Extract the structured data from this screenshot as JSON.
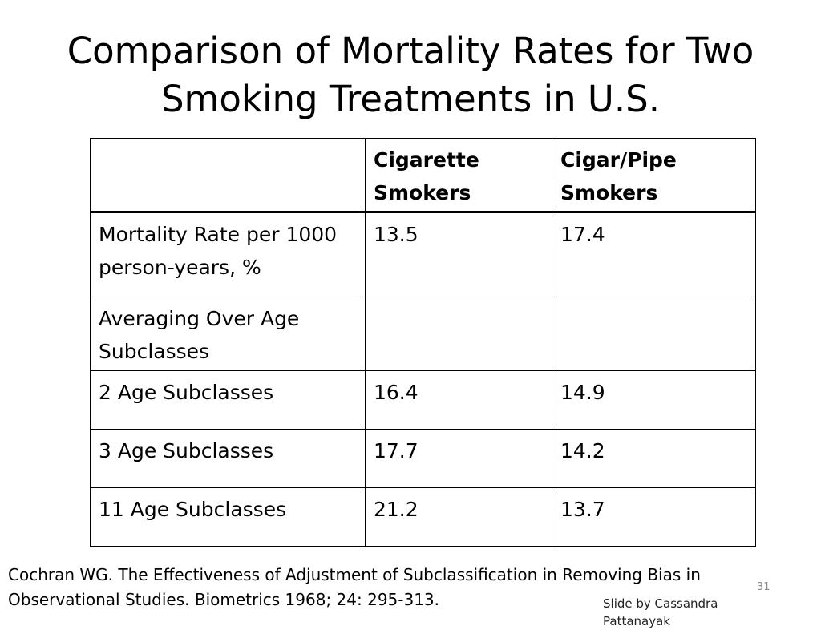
{
  "title": {
    "line1": "Comparison of Mortality Rates for Two",
    "line2": "Smoking Treatments in U.S."
  },
  "table": {
    "headers": [
      "",
      "Cigarette Smokers",
      "Cigar/Pipe Smokers"
    ],
    "rows": [
      [
        "Mortality Rate per 1000 person-years, %",
        "13.5",
        "17.4"
      ],
      [
        "Averaging Over Age Subclasses",
        "",
        ""
      ],
      [
        "2 Age Subclasses",
        "16.4",
        "14.9"
      ],
      [
        "3 Age Subclasses",
        "17.7",
        "14.2"
      ],
      [
        "11 Age Subclasses",
        "21.2",
        "13.7"
      ]
    ]
  },
  "citation": {
    "line1": "Cochran WG. The Effectiveness of Adjustment of Subclassification in Removing Bias in",
    "line2": "Observational Studies. Biometrics 1968; 24: 295-313."
  },
  "page_number": "31",
  "credit": "Slide by Cassandra Pattanayak"
}
